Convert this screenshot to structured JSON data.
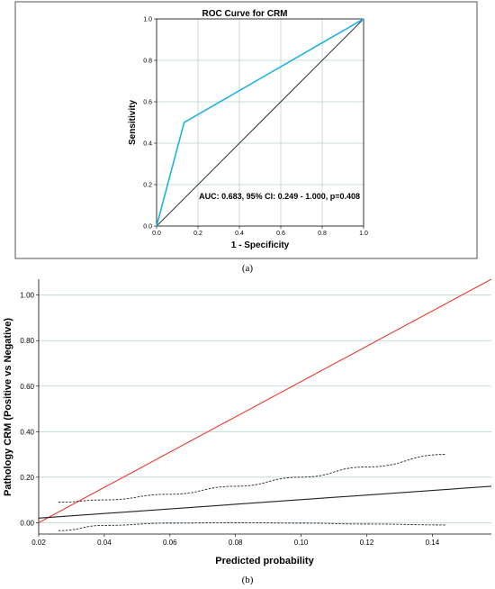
{
  "chart_data": [
    {
      "panel_label": "(a)",
      "type": "line",
      "title": "ROC Curve for CRM",
      "xlabel": "1 - Specificity",
      "ylabel": "Sensitivity",
      "xlim": [
        0,
        1
      ],
      "ylim": [
        0,
        1
      ],
      "xticks": [
        "0.0",
        "0.2",
        "0.4",
        "0.6",
        "0.8",
        "1.0"
      ],
      "yticks": [
        "0.0",
        "0.2",
        "0.4",
        "0.6",
        "0.8",
        "1.0"
      ],
      "annotation": "AUC: 0.683, 95% CI: 0.249 - 1.000, p=0.408",
      "grid": true,
      "series": [
        {
          "x": [
            0.0,
            0.133,
            1.0
          ],
          "y": [
            0.0,
            0.5,
            1.0
          ],
          "color": "#1fb3e0"
        },
        {
          "x": [
            0.0,
            1.0
          ],
          "y": [
            0.0,
            1.0
          ],
          "color": "#3a3a3a"
        }
      ]
    },
    {
      "panel_label": "(b)",
      "type": "line",
      "title": "",
      "xlabel": "Predicted probability",
      "ylabel": "Pathology CRM (Positive vs Negative)",
      "xlim": [
        0.02,
        0.158
      ],
      "ylim": [
        -0.05,
        1.07
      ],
      "xticks": [
        "0.02",
        "0.04",
        "0.06",
        "0.08",
        "0.10",
        "0.12",
        "0.14"
      ],
      "yticks": [
        "0.00",
        "0.20",
        "0.40",
        "0.60",
        "0.80",
        "1.00"
      ],
      "grid": true,
      "series": [
        {
          "x": [
            0.02,
            0.158
          ],
          "y": [
            0.0,
            1.07
          ],
          "color": "#ee3b2b",
          "style": "solid"
        },
        {
          "x": [
            0.02,
            0.158
          ],
          "y": [
            0.02,
            0.16
          ],
          "color": "#222222",
          "style": "solid"
        },
        {
          "x": [
            0.026,
            0.04,
            0.06,
            0.08,
            0.1,
            0.12,
            0.144
          ],
          "y": [
            0.09,
            0.1,
            0.125,
            0.16,
            0.2,
            0.245,
            0.3
          ],
          "color": "#222222",
          "style": "dashed"
        },
        {
          "x": [
            0.026,
            0.04,
            0.06,
            0.08,
            0.1,
            0.12,
            0.144
          ],
          "y": [
            -0.035,
            -0.012,
            -0.002,
            0.0,
            -0.002,
            -0.006,
            -0.01
          ],
          "color": "#222222",
          "style": "dashed"
        }
      ]
    }
  ]
}
